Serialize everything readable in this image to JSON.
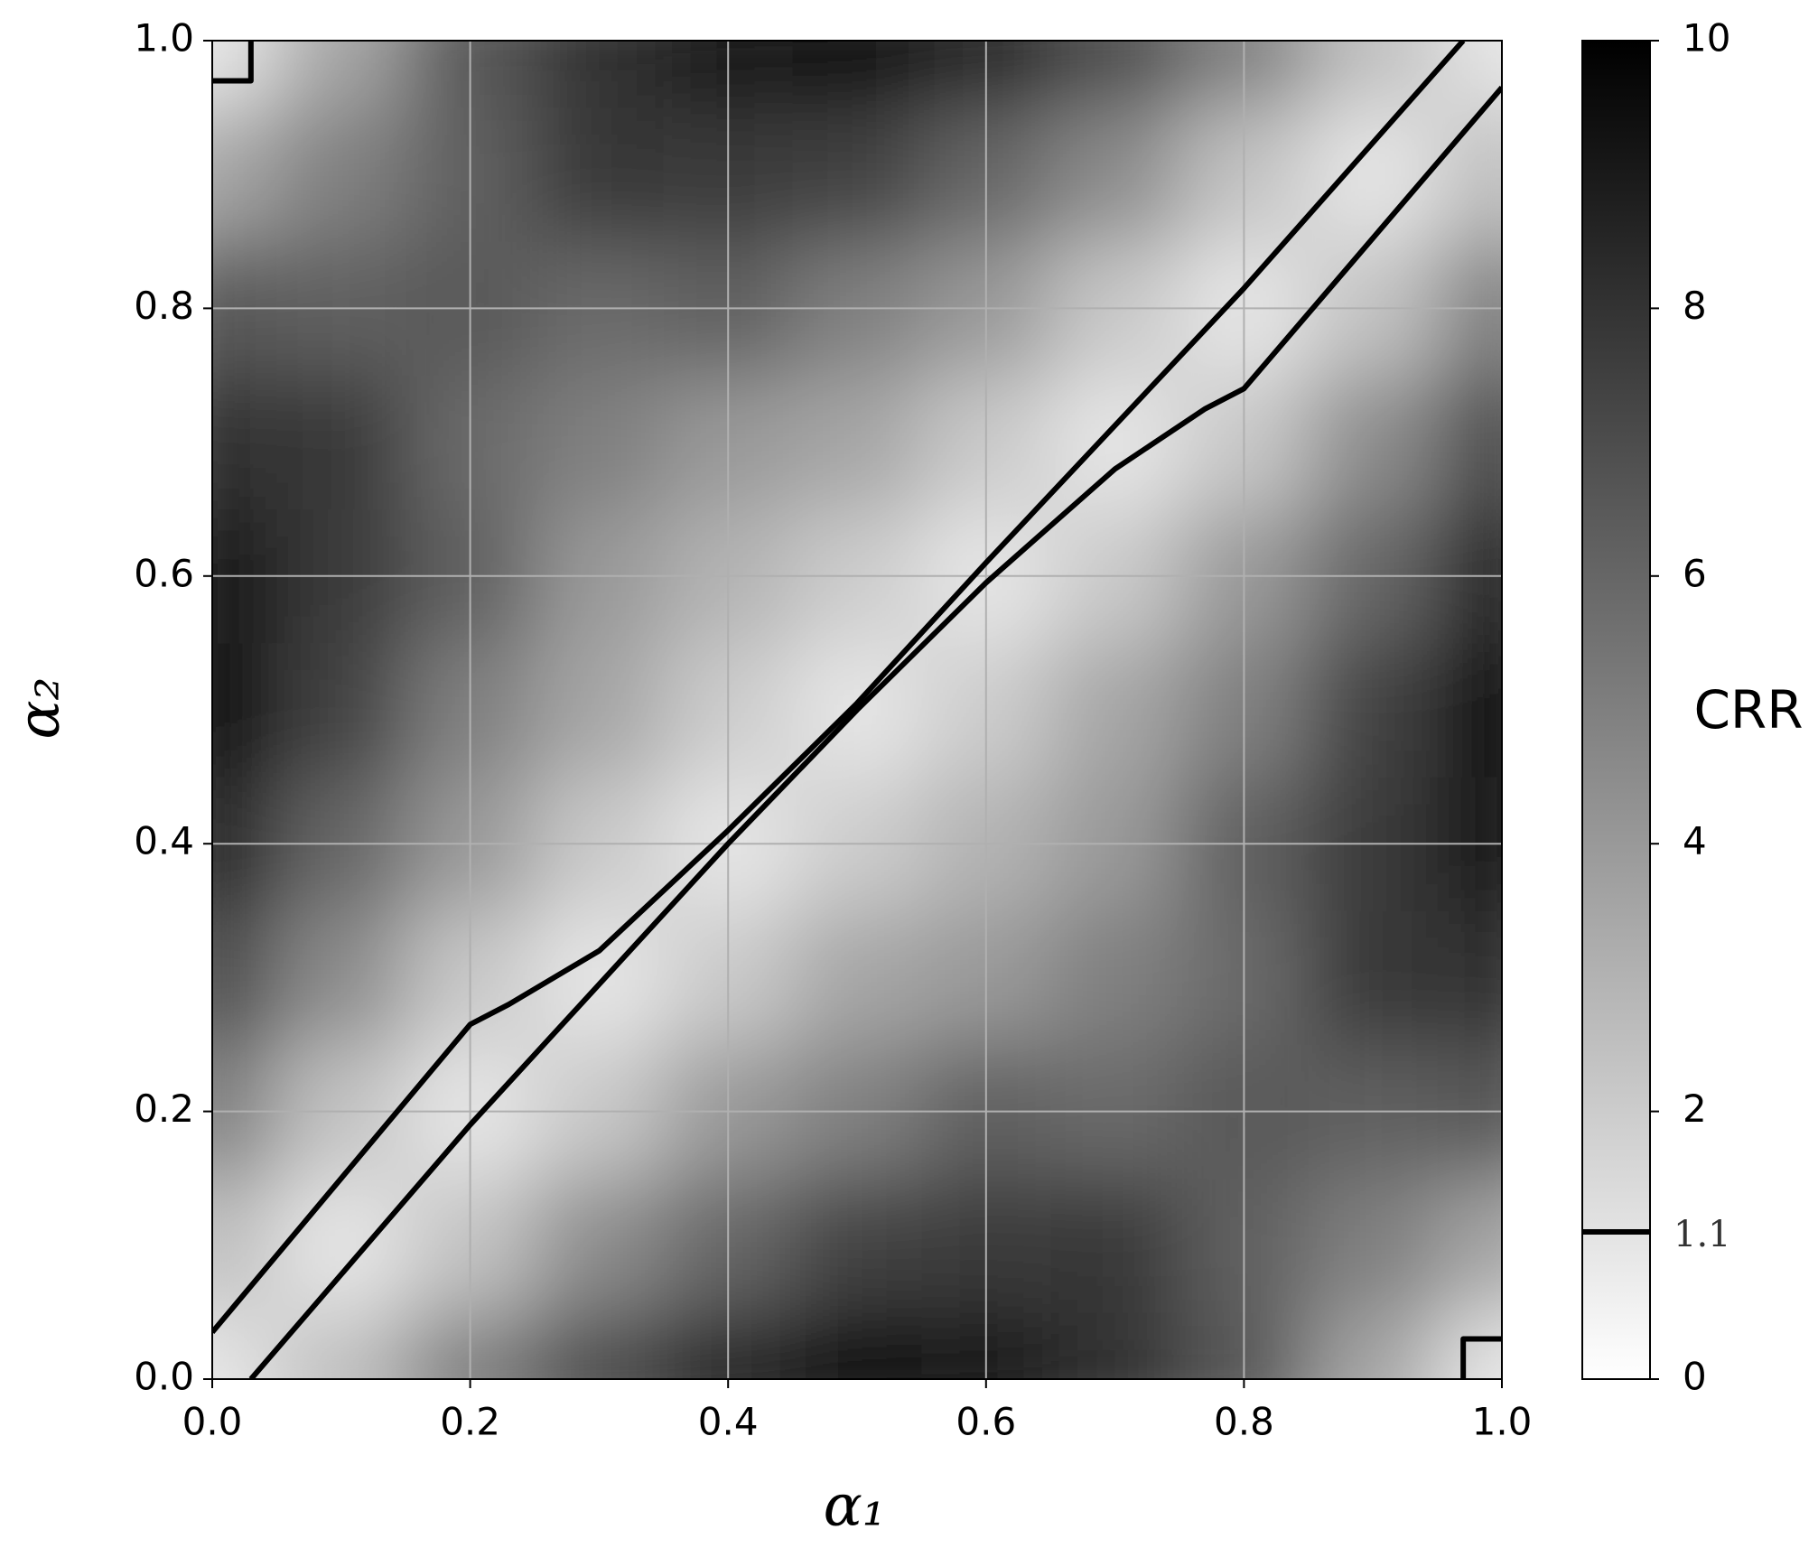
{
  "chart_data": {
    "type": "heatmap",
    "x_label": "α₁",
    "y_label": "α₂",
    "colorbar_label": "CRR",
    "xlim": [
      0,
      1
    ],
    "ylim": [
      0,
      1
    ],
    "xticks": [
      {
        "value": 0,
        "label": "0.0"
      },
      0.2,
      0.4,
      0.6,
      0.8,
      {
        "value": 1,
        "label": "1.0"
      }
    ],
    "yticks": [
      {
        "value": 0,
        "label": "0.0"
      },
      0.2,
      0.4,
      0.6,
      0.8,
      {
        "value": 1,
        "label": "1.0"
      }
    ],
    "grid": true,
    "x": [
      0,
      0.1,
      0.2,
      0.3,
      0.4,
      0.5,
      0.6,
      0.7,
      0.8,
      0.9,
      1
    ],
    "y": [
      0,
      0.1,
      0.2,
      0.3,
      0.4,
      0.5,
      0.6,
      0.7,
      0.8,
      0.9,
      1
    ],
    "z": [
      [
        1,
        2.5,
        5,
        7,
        8.5,
        9.5,
        9,
        8,
        6.5,
        3.5,
        1
      ],
      [
        2.5,
        1,
        2.4,
        4.5,
        6,
        7.4,
        7.7,
        7.8,
        6.2,
        5,
        3.5
      ],
      [
        5,
        2.4,
        1,
        2.2,
        4,
        5,
        6.2,
        5.8,
        6.5,
        6.2,
        6.5
      ],
      [
        7,
        4.5,
        2.2,
        1,
        2.1,
        3.5,
        4,
        5,
        5.8,
        7.8,
        8
      ],
      [
        8.5,
        6,
        4,
        2.1,
        1,
        2,
        3,
        4,
        6.2,
        7.7,
        9
      ],
      [
        9.5,
        7.4,
        5,
        3.5,
        2,
        1,
        2,
        3.5,
        5,
        7.4,
        9.5
      ],
      [
        9,
        7.7,
        6.2,
        4,
        3,
        2,
        1,
        2.1,
        4,
        6,
        8.5
      ],
      [
        8,
        7.8,
        5.8,
        5,
        4,
        3.5,
        2.1,
        1,
        2.2,
        4.5,
        7
      ],
      [
        6.5,
        6.2,
        6.5,
        5.8,
        6.2,
        5,
        4,
        2.2,
        1,
        2.4,
        5
      ],
      [
        3.5,
        5,
        6.2,
        7.8,
        7.7,
        7.4,
        6,
        4.5,
        2.4,
        1,
        2.5
      ],
      [
        1,
        3.5,
        6.5,
        8,
        9,
        9.5,
        8.5,
        7,
        5,
        2.5,
        1
      ]
    ],
    "zlim": [
      0,
      10
    ],
    "cmap": "gray_r",
    "cticks": [
      0,
      2,
      4,
      6,
      8,
      10
    ],
    "contour_level": 1.1,
    "contour_color": "#000000",
    "contours": [
      {
        "x": [
          0,
          0.2,
          0.23,
          0.3,
          0.4,
          0.5,
          0.6,
          0.8,
          0.97
        ],
        "y": [
          0.035,
          0.265,
          0.28,
          0.32,
          0.41,
          0.505,
          0.61,
          0.815,
          1
        ]
      },
      {
        "x": [
          0.03,
          0.2,
          0.4,
          0.5,
          0.6,
          0.7,
          0.77,
          0.8,
          1
        ],
        "y": [
          0,
          0.19,
          0.4,
          0.5,
          0.595,
          0.68,
          0.725,
          0.74,
          0.965
        ]
      },
      {
        "x": [
          0,
          0.03,
          0.03
        ],
        "y": [
          0.97,
          0.97,
          1
        ]
      },
      {
        "x": [
          0.97,
          0.97,
          1
        ],
        "y": [
          0,
          0.03,
          0.03
        ]
      }
    ]
  }
}
